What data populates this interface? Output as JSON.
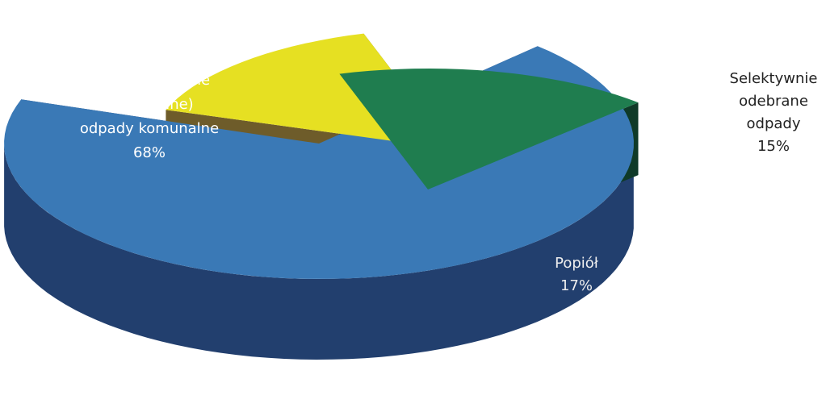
{
  "chart_data": {
    "type": "pie",
    "three_d": true,
    "exploded": true,
    "title": "",
    "slices": [
      {
        "label_lines": [
          "Niesegregowane",
          "(zmieszane)",
          "odpady komunalne"
        ],
        "percent_label": "68%",
        "value": 68,
        "color": "#3a79b6",
        "side_color": "#223f6e"
      },
      {
        "label_lines": [
          "Selektywnie",
          "odebrane",
          "odpady"
        ],
        "percent_label": "15%",
        "value": 15,
        "color": "#e6e022",
        "side_color": "#6e5c2a"
      },
      {
        "label_lines": [
          "Popiół"
        ],
        "percent_label": "17%",
        "value": 17,
        "color": "#1f7d4f",
        "side_color": "#0f3a28"
      }
    ]
  }
}
